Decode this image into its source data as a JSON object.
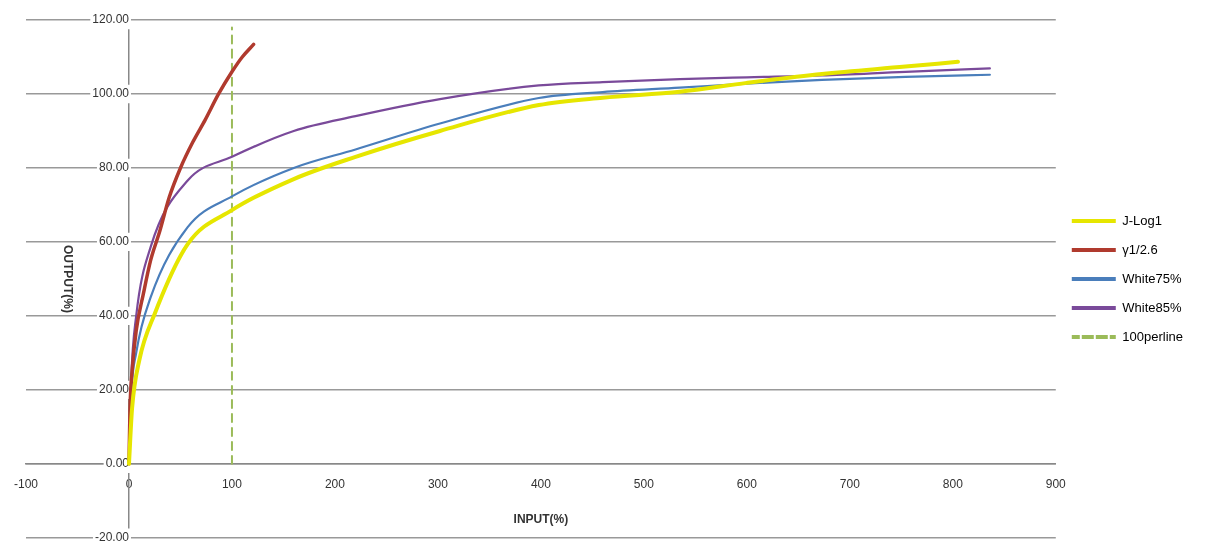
{
  "chart_data": {
    "type": "line",
    "xlabel": "INPUT(%)",
    "ylabel": "OUTPUT(%)",
    "xlim": [
      -100,
      900
    ],
    "xticks": [
      -100,
      0,
      100,
      200,
      300,
      400,
      500,
      600,
      700,
      800,
      900
    ],
    "ylim": [
      -20,
      120
    ],
    "yticks": [
      {
        "value": -20,
        "label": "-20.00"
      },
      {
        "value": 0,
        "label": "0.00"
      },
      {
        "value": 20,
        "label": "20.00"
      },
      {
        "value": 40,
        "label": "40.00"
      },
      {
        "value": 60,
        "label": "60.00"
      },
      {
        "value": 80,
        "label": "80.00"
      },
      {
        "value": 100,
        "label": "100.00"
      },
      {
        "value": 120,
        "label": "120.00"
      }
    ],
    "grid": "y",
    "legend": "right",
    "series": [
      {
        "name": "J-Log1",
        "color": "#e6e600",
        "x": [
          0,
          3,
          10,
          25,
          57,
          100,
          160,
          220,
          302,
          398,
          460,
          535,
          600,
          673,
          754,
          805
        ],
        "values": [
          0,
          15,
          28,
          40.6,
          59.4,
          68.6,
          77,
          83,
          90,
          97,
          99,
          100.6,
          103,
          105.4,
          107.4,
          108.7
        ]
      },
      {
        "name": "γ1/2.6",
        "color": "#b03a2e",
        "x": [
          0,
          1,
          3,
          7,
          14,
          21,
          30,
          39,
          50,
          62,
          74,
          87,
          100,
          110,
          121
        ],
        "values": [
          0,
          15,
          25,
          36,
          46,
          55,
          63,
          72,
          80,
          87,
          93,
          100,
          106,
          110,
          113.4
        ]
      },
      {
        "name": "White75%",
        "color": "#4a7ebb",
        "x": [
          0,
          2,
          7,
          21,
          57,
          100,
          160,
          220,
          302,
          398,
          460,
          535,
          600,
          673,
          754,
          836
        ],
        "values": [
          0,
          18,
          30,
          45,
          64,
          72.3,
          80,
          85,
          92,
          98.9,
          100.5,
          101.7,
          102.8,
          103.8,
          104.6,
          105.2
        ]
      },
      {
        "name": "White85%",
        "color": "#7a4a9a",
        "x": [
          0,
          2,
          7,
          21,
          57,
          100,
          160,
          220,
          302,
          398,
          460,
          535,
          600,
          673,
          754,
          836
        ],
        "values": [
          0,
          22,
          40,
          58.6,
          76.6,
          83,
          90,
          94,
          98.6,
          102.3,
          103.2,
          104,
          104.5,
          105,
          106,
          106.9
        ]
      },
      {
        "name": "100perline",
        "color": "#9bbb59",
        "line_style": "dashed",
        "x": [
          100,
          100
        ],
        "values": [
          0,
          118
        ]
      }
    ]
  }
}
